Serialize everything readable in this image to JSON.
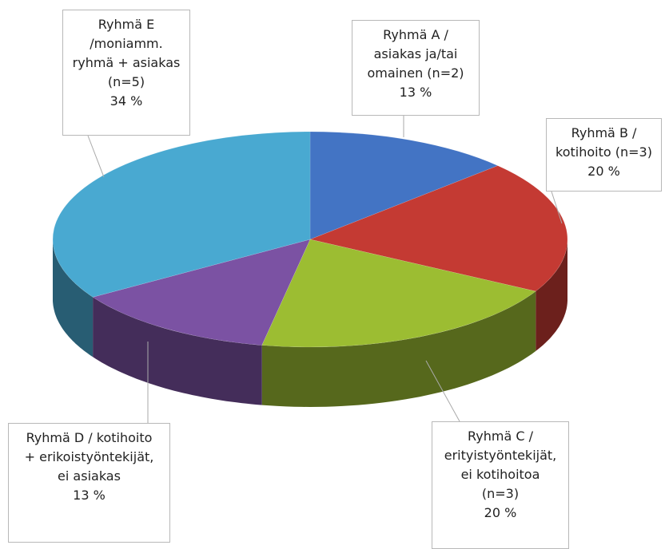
{
  "chart_data": {
    "type": "pie",
    "categories": [
      "Ryhmä A /\nasiakas ja/tai\nomainen (n=2)",
      "Ryhmä B /\nkotihoito (n=3)",
      "Ryhmä C /\nerityistyöntekijät,\nei kotihoitoa\n(n=3)",
      "Ryhmä D / kotihoito\n+ erikoistyöntekijät,\nei asiakas",
      "Ryhmä E\n/moniamm.\nryhmä + asiakas\n(n=5)"
    ],
    "values": [
      13,
      20,
      20,
      13,
      34
    ],
    "value_labels": [
      "13 %",
      "20 %",
      "20 %",
      "13 %",
      "34 %"
    ],
    "colors": [
      "#4374c4",
      "#c43a33",
      "#9cbd32",
      "#7b52a3",
      "#49a9d1"
    ]
  }
}
